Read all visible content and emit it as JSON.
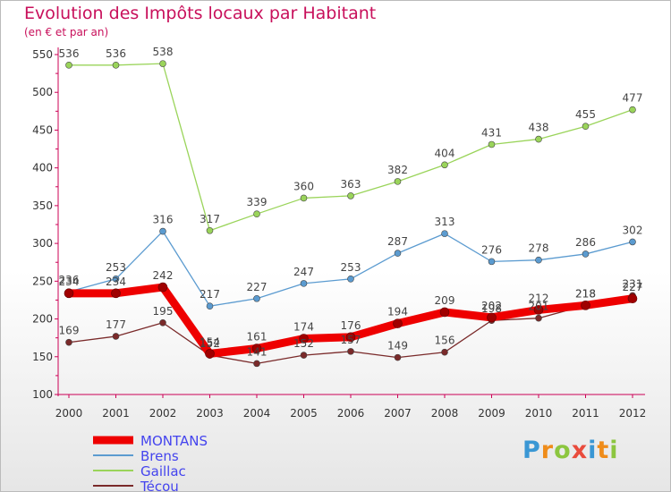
{
  "header": {
    "title": "Evolution des Impôts locaux par Habitant",
    "subtitle": "(en € et par an)"
  },
  "brand": {
    "text": "Proxiti",
    "letters": [
      "P",
      "r",
      "o",
      "x",
      "i",
      "t",
      "i"
    ]
  },
  "chart_data": {
    "type": "line",
    "x": [
      "2000",
      "2001",
      "2002",
      "2003",
      "2004",
      "2005",
      "2006",
      "2007",
      "2008",
      "2009",
      "2010",
      "2011",
      "2012"
    ],
    "yticks": [
      "100",
      "150",
      "200",
      "250",
      "300",
      "350",
      "400",
      "450",
      "500",
      "550"
    ],
    "ylim": [
      100,
      550
    ],
    "grid": false,
    "legend_position": "bottom-left",
    "series": [
      {
        "name": "Brens",
        "color": "#5b9bd0",
        "values": [
          236,
          253,
          316,
          217,
          227,
          247,
          253,
          287,
          313,
          276,
          278,
          286,
          302
        ]
      },
      {
        "name": "Gaillac",
        "color": "#9ad45a",
        "values": [
          536,
          536,
          538,
          317,
          339,
          360,
          363,
          382,
          404,
          431,
          438,
          455,
          477
        ]
      },
      {
        "name": "Técou",
        "color": "#7a2a2a",
        "values": [
          169,
          177,
          195,
          152,
          141,
          152,
          157,
          149,
          156,
          198,
          201,
          218,
          231
        ]
      },
      {
        "name": "MONTANS",
        "color": "#ee0000",
        "values": [
          234,
          234,
          242,
          154,
          161,
          174,
          176,
          194,
          209,
          202,
          212,
          218,
          227
        ]
      }
    ],
    "legend_order": [
      "MONTANS",
      "Brens",
      "Gaillac",
      "Técou"
    ],
    "legend_label_color": "#4444ee",
    "axis_color": "#cc0055"
  }
}
